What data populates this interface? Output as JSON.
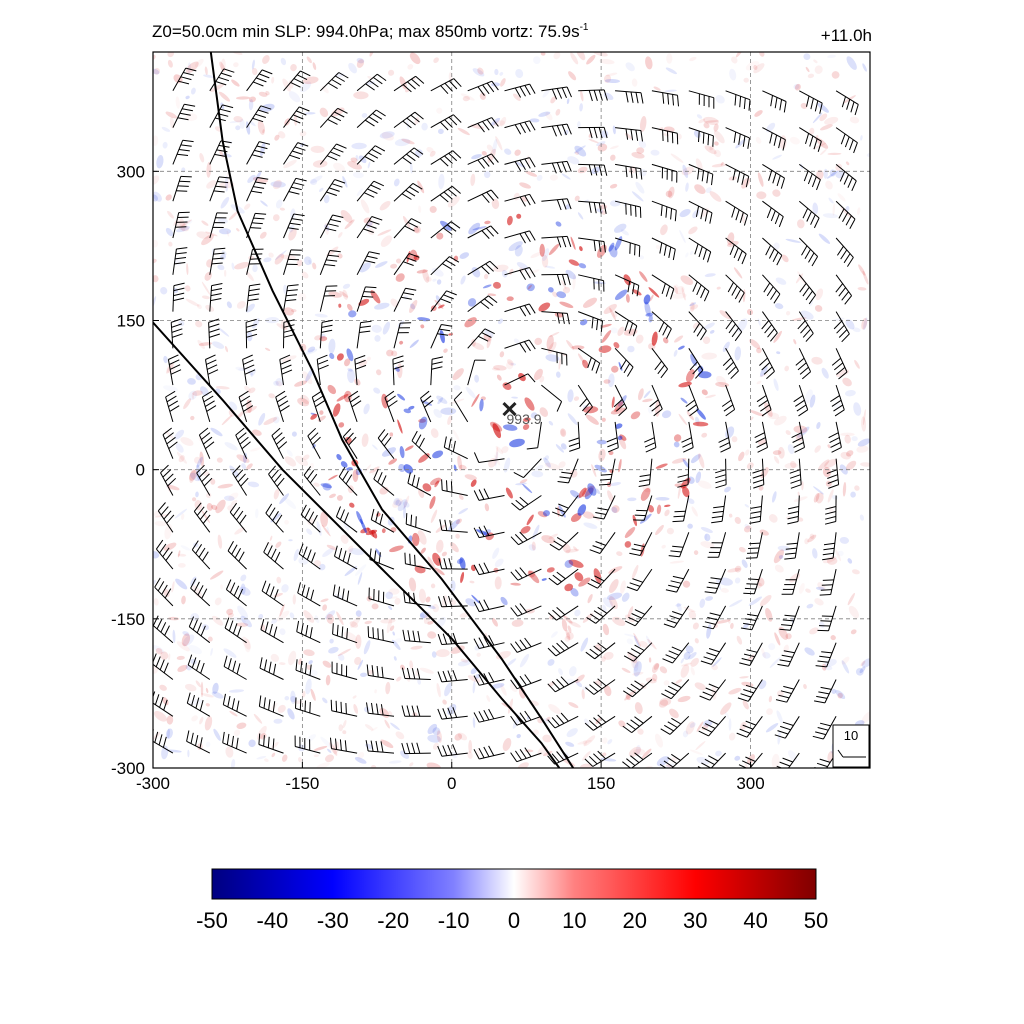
{
  "header": {
    "title_prefix": "Z0=50.0cm  min SLP: 994.0hPa; max 850mb vortz:  75.9s",
    "title_superscript": "-1",
    "forecast_time": "+11.0h"
  },
  "colors": {
    "positive": "#d00000",
    "negative": "#1030e0",
    "neutral": "#ffffff",
    "frame": "#000000",
    "grid": "#808080",
    "center_marker": "#222222",
    "front_line": "#000000"
  },
  "chart_data": {
    "type": "heatmap",
    "variable": "850mb vorticity with wind barbs",
    "xlim": [
      -300,
      420
    ],
    "ylim": [
      -300,
      420
    ],
    "x_ticks": [
      "-300",
      "-150",
      "0",
      "150",
      "300"
    ],
    "y_ticks": [
      "-300",
      "-150",
      "0",
      "150",
      "300"
    ],
    "grid": "dashed at every 150",
    "storm_center": {
      "x": 58,
      "y": 61,
      "label": "993.9",
      "marker": "x"
    },
    "curves": [
      {
        "points": [
          [
            -242,
            420
          ],
          [
            -230,
            330
          ],
          [
            -215,
            260
          ],
          [
            -180,
            180
          ],
          [
            -140,
            100
          ],
          [
            -110,
            30
          ],
          [
            -70,
            -40
          ],
          [
            -10,
            -110
          ],
          [
            50,
            -190
          ],
          [
            90,
            -250
          ],
          [
            122,
            -300
          ]
        ]
      },
      {
        "points": [
          [
            -300,
            148
          ],
          [
            -230,
            70
          ],
          [
            -170,
            0
          ],
          [
            -110,
            -60
          ],
          [
            -60,
            -110
          ],
          [
            0,
            -170
          ],
          [
            50,
            -230
          ],
          [
            90,
            -275
          ],
          [
            108,
            -300
          ]
        ]
      }
    ],
    "wind_scale": {
      "label": "10",
      "position": "bottom-right"
    },
    "colorbar": {
      "ticks": [
        "-50",
        "-40",
        "-30",
        "-20",
        "-10",
        "0",
        "10",
        "20",
        "30",
        "40",
        "50"
      ],
      "range": [
        -50,
        50
      ],
      "colors": [
        "#000080",
        "#0000ff",
        "#7070ff",
        "#ffffff",
        "#ff7070",
        "#ff0000",
        "#800000"
      ]
    }
  }
}
